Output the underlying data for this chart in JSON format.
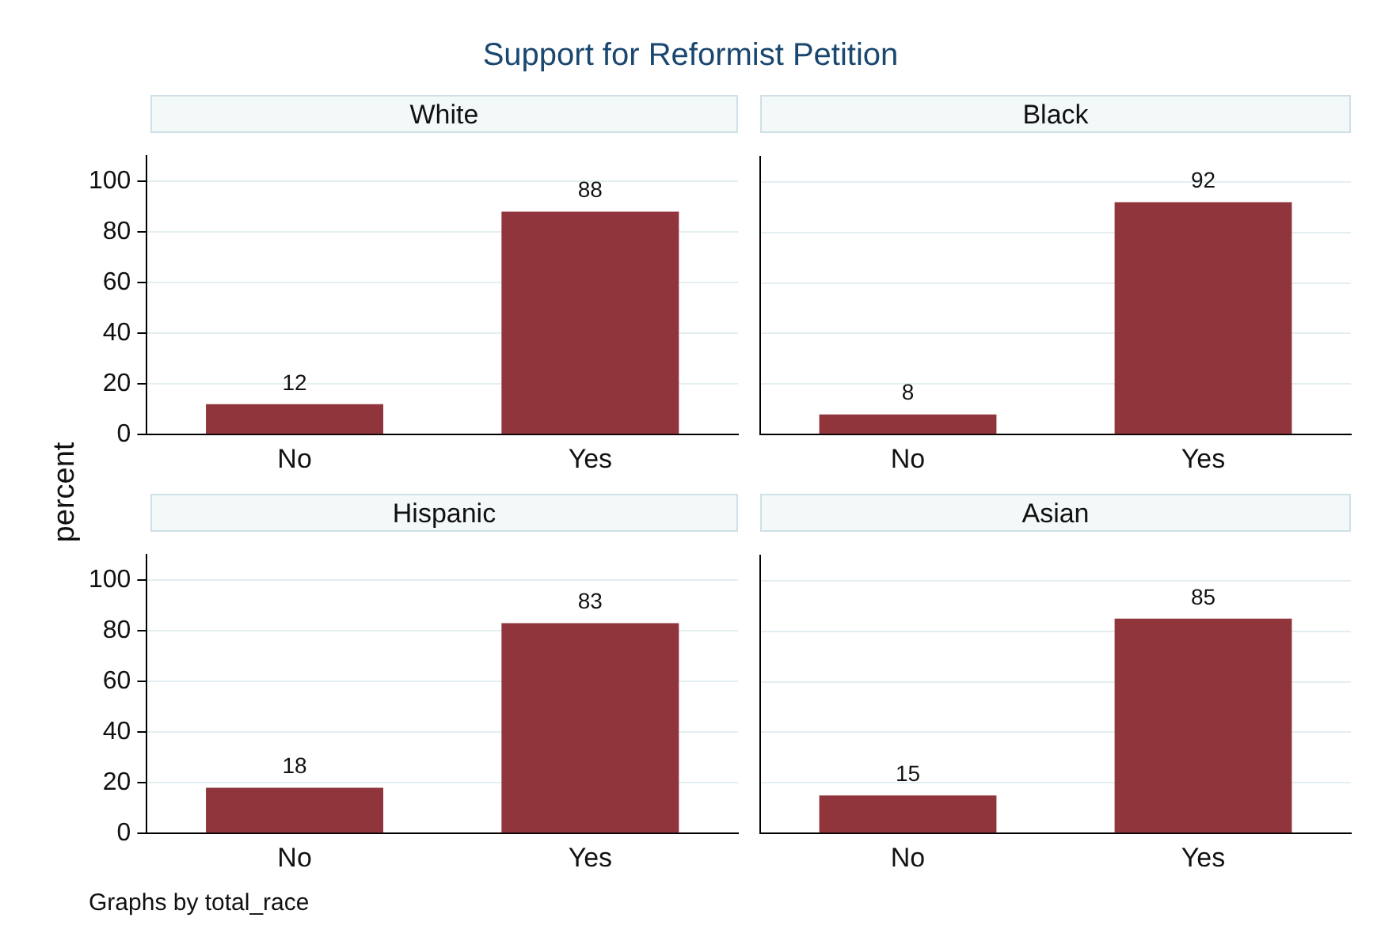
{
  "chart_data": [
    {
      "type": "bar",
      "title": "White",
      "ylabel": "percent",
      "annotations": [
        "Support for Reformist Petition",
        "Graphs by total_race"
      ],
      "categories": [
        "No",
        "Yes"
      ],
      "values": [
        12,
        88
      ],
      "color": "#8f353b",
      "ylim": [
        0,
        110
      ],
      "yticks": [
        0,
        20,
        40,
        60,
        80,
        100
      ],
      "grid": "y",
      "data_labels": true
    },
    {
      "type": "bar",
      "title": "Black",
      "categories": [
        "No",
        "Yes"
      ],
      "values": [
        8,
        92
      ],
      "color": "#8f353b",
      "ylim": [
        0,
        110
      ],
      "yticks": [
        0,
        20,
        40,
        60,
        80,
        100
      ],
      "grid": "y",
      "data_labels": true,
      "tick_labels": "x"
    },
    {
      "type": "bar",
      "title": "Hispanic",
      "categories": [
        "No",
        "Yes"
      ],
      "values": [
        18,
        83
      ],
      "color": "#8f353b",
      "ylim": [
        0,
        110
      ],
      "yticks": [
        0,
        20,
        40,
        60,
        80,
        100
      ],
      "grid": "y",
      "data_labels": true
    },
    {
      "type": "bar",
      "title": "Asian",
      "categories": [
        "No",
        "Yes"
      ],
      "values": [
        15,
        85
      ],
      "color": "#8f353b",
      "ylim": [
        0,
        110
      ],
      "yticks": [
        0,
        20,
        40,
        60,
        80,
        100
      ],
      "grid": "y",
      "data_labels": true,
      "tick_labels": "x"
    }
  ]
}
